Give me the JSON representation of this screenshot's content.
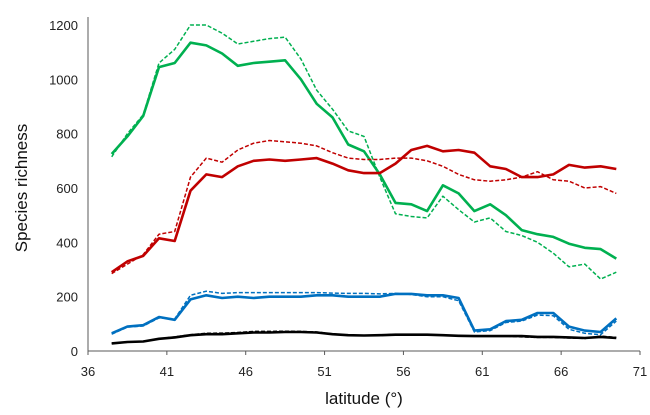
{
  "chart_data": {
    "type": "line",
    "title": "",
    "xlabel": "latitude (°)",
    "ylabel": "Species richness",
    "xlim": [
      36,
      71
    ],
    "ylim": [
      0,
      1200
    ],
    "xticks": [
      36,
      41,
      46,
      51,
      56,
      61,
      66,
      71
    ],
    "yticks": [
      0,
      200,
      400,
      600,
      800,
      1000,
      1200
    ],
    "grid": false,
    "legend": "none",
    "series": [
      {
        "color": "#00b050",
        "style": "solid",
        "x": [
          37.5,
          38.5,
          39.5,
          40.5,
          41.5,
          42.5,
          43.5,
          44.5,
          45.5,
          46.5,
          47.5,
          48.5,
          49.5,
          50.5,
          51.5,
          52.5,
          53.5,
          54.5,
          55.5,
          56.5,
          57.5,
          58.5,
          59.5,
          60.5,
          61.5,
          62.5,
          63.5,
          64.5,
          65.5,
          66.5,
          67.5,
          68.5,
          69.5
        ],
        "y": [
          725,
          790,
          865,
          1045,
          1060,
          1135,
          1125,
          1095,
          1050,
          1060,
          1065,
          1070,
          1000,
          910,
          860,
          760,
          735,
          650,
          545,
          540,
          515,
          610,
          580,
          515,
          540,
          500,
          445,
          430,
          420,
          395,
          380,
          375,
          340
        ]
      },
      {
        "color": "#00b050",
        "style": "dashed",
        "x": [
          37.5,
          38.5,
          39.5,
          40.5,
          41.5,
          42.5,
          43.5,
          44.5,
          45.5,
          46.5,
          47.5,
          48.5,
          49.5,
          50.5,
          51.5,
          52.5,
          53.5,
          54.5,
          55.5,
          56.5,
          57.5,
          58.5,
          59.5,
          60.5,
          61.5,
          62.5,
          63.5,
          64.5,
          65.5,
          66.5,
          67.5,
          68.5,
          69.5
        ],
        "y": [
          715,
          800,
          870,
          1060,
          1110,
          1200,
          1200,
          1170,
          1130,
          1140,
          1150,
          1155,
          1075,
          960,
          890,
          810,
          790,
          640,
          505,
          495,
          490,
          570,
          520,
          475,
          490,
          440,
          425,
          400,
          360,
          310,
          320,
          265,
          290
        ]
      },
      {
        "color": "#c00000",
        "style": "solid",
        "x": [
          37.5,
          38.5,
          39.5,
          40.5,
          41.5,
          42.5,
          43.5,
          44.5,
          45.5,
          46.5,
          47.5,
          48.5,
          49.5,
          50.5,
          51.5,
          52.5,
          53.5,
          54.5,
          55.5,
          56.5,
          57.5,
          58.5,
          59.5,
          60.5,
          61.5,
          62.5,
          63.5,
          64.5,
          65.5,
          66.5,
          67.5,
          68.5,
          69.5
        ],
        "y": [
          290,
          330,
          350,
          415,
          405,
          590,
          650,
          640,
          680,
          700,
          705,
          700,
          705,
          710,
          690,
          665,
          655,
          655,
          690,
          740,
          755,
          735,
          740,
          730,
          680,
          670,
          640,
          640,
          650,
          685,
          675,
          680,
          670
        ]
      },
      {
        "color": "#c00000",
        "style": "dashed",
        "x": [
          37.5,
          38.5,
          39.5,
          40.5,
          41.5,
          42.5,
          43.5,
          44.5,
          45.5,
          46.5,
          47.5,
          48.5,
          49.5,
          50.5,
          51.5,
          52.5,
          53.5,
          54.5,
          55.5,
          56.5,
          57.5,
          58.5,
          59.5,
          60.5,
          61.5,
          62.5,
          63.5,
          64.5,
          65.5,
          66.5,
          67.5,
          68.5,
          69.5
        ],
        "y": [
          285,
          320,
          355,
          430,
          440,
          640,
          710,
          695,
          740,
          765,
          775,
          770,
          765,
          755,
          730,
          710,
          705,
          705,
          710,
          710,
          700,
          680,
          650,
          630,
          625,
          630,
          640,
          660,
          630,
          625,
          600,
          605,
          580
        ]
      },
      {
        "color": "#0070c0",
        "style": "solid",
        "x": [
          37.5,
          38.5,
          39.5,
          40.5,
          41.5,
          42.5,
          43.5,
          44.5,
          45.5,
          46.5,
          47.5,
          48.5,
          49.5,
          50.5,
          51.5,
          52.5,
          53.5,
          54.5,
          55.5,
          56.5,
          57.5,
          58.5,
          59.5,
          60.5,
          61.5,
          62.5,
          63.5,
          64.5,
          65.5,
          66.5,
          67.5,
          68.5,
          69.5
        ],
        "y": [
          65,
          90,
          95,
          125,
          115,
          190,
          205,
          195,
          200,
          195,
          200,
          200,
          200,
          205,
          205,
          200,
          200,
          200,
          210,
          210,
          205,
          205,
          195,
          75,
          80,
          110,
          115,
          140,
          140,
          90,
          75,
          70,
          120
        ]
      },
      {
        "color": "#0070c0",
        "style": "dashed",
        "x": [
          37.5,
          38.5,
          39.5,
          40.5,
          41.5,
          42.5,
          43.5,
          44.5,
          45.5,
          46.5,
          47.5,
          48.5,
          49.5,
          50.5,
          51.5,
          52.5,
          53.5,
          54.5,
          55.5,
          56.5,
          57.5,
          58.5,
          59.5,
          60.5,
          61.5,
          62.5,
          63.5,
          64.5,
          65.5,
          66.5,
          67.5,
          68.5,
          69.5
        ],
        "y": [
          62,
          88,
          92,
          122,
          118,
          205,
          220,
          212,
          215,
          215,
          215,
          215,
          215,
          215,
          213,
          212,
          212,
          210,
          212,
          208,
          200,
          200,
          185,
          70,
          75,
          105,
          110,
          132,
          130,
          80,
          65,
          60,
          110
        ]
      },
      {
        "color": "#000000",
        "style": "solid",
        "x": [
          37.5,
          38.5,
          39.5,
          40.5,
          41.5,
          42.5,
          43.5,
          44.5,
          45.5,
          46.5,
          47.5,
          48.5,
          49.5,
          50.5,
          51.5,
          52.5,
          53.5,
          54.5,
          55.5,
          56.5,
          57.5,
          58.5,
          59.5,
          60.5,
          61.5,
          62.5,
          63.5,
          64.5,
          65.5,
          66.5,
          67.5,
          68.5,
          69.5
        ],
        "y": [
          28,
          33,
          35,
          45,
          50,
          58,
          62,
          62,
          65,
          68,
          68,
          70,
          70,
          68,
          62,
          58,
          57,
          58,
          60,
          60,
          60,
          58,
          56,
          55,
          55,
          55,
          55,
          52,
          52,
          50,
          48,
          52,
          48
        ]
      },
      {
        "color": "#000000",
        "style": "dashed",
        "x": [
          37.5,
          38.5,
          39.5,
          40.5,
          41.5,
          42.5,
          43.5,
          44.5,
          45.5,
          46.5,
          47.5,
          48.5,
          49.5,
          50.5,
          51.5,
          52.5,
          53.5,
          54.5,
          55.5,
          56.5,
          57.5,
          58.5,
          59.5,
          60.5,
          61.5,
          62.5,
          63.5,
          64.5,
          65.5,
          66.5,
          67.5,
          68.5,
          69.5
        ],
        "y": [
          28,
          32,
          35,
          45,
          52,
          60,
          65,
          66,
          68,
          72,
          72,
          73,
          72,
          70,
          63,
          58,
          57,
          58,
          62,
          60,
          60,
          58,
          56,
          55,
          54,
          55,
          52,
          50,
          50,
          48,
          46,
          55,
          50
        ]
      }
    ]
  }
}
